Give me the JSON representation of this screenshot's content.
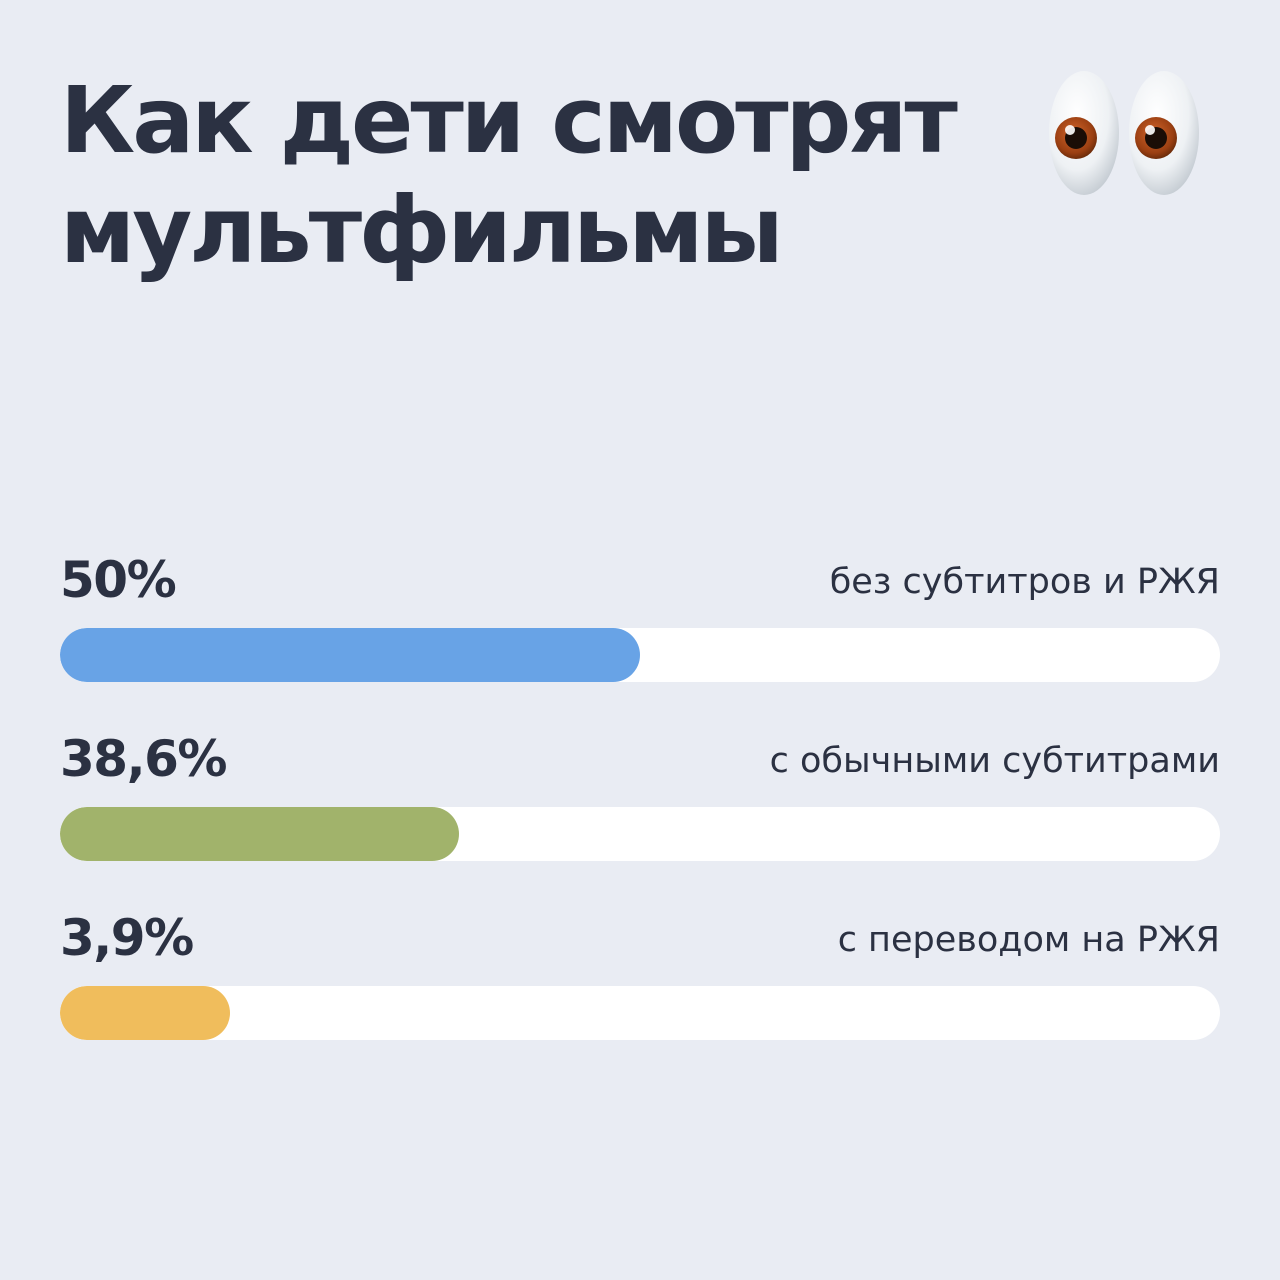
{
  "chart_data": {
    "type": "bar",
    "orientation": "horizontal",
    "title": "Как дети смотрят мультфильмы",
    "categories": [
      "без субтитров и РЖЯ",
      "с обычными субтитрами",
      "с переводом на РЖЯ"
    ],
    "values": [
      50,
      38.6,
      3.9
    ],
    "value_labels": [
      "50%",
      "38,6%",
      "3,9%"
    ],
    "colors": [
      "#68a3e6",
      "#a1b36b",
      "#f0bd5c"
    ],
    "track_color": "#ffffff",
    "unit": "%",
    "grid": false,
    "legend": "none"
  },
  "decoration": {
    "icon": "eyes-icon"
  }
}
